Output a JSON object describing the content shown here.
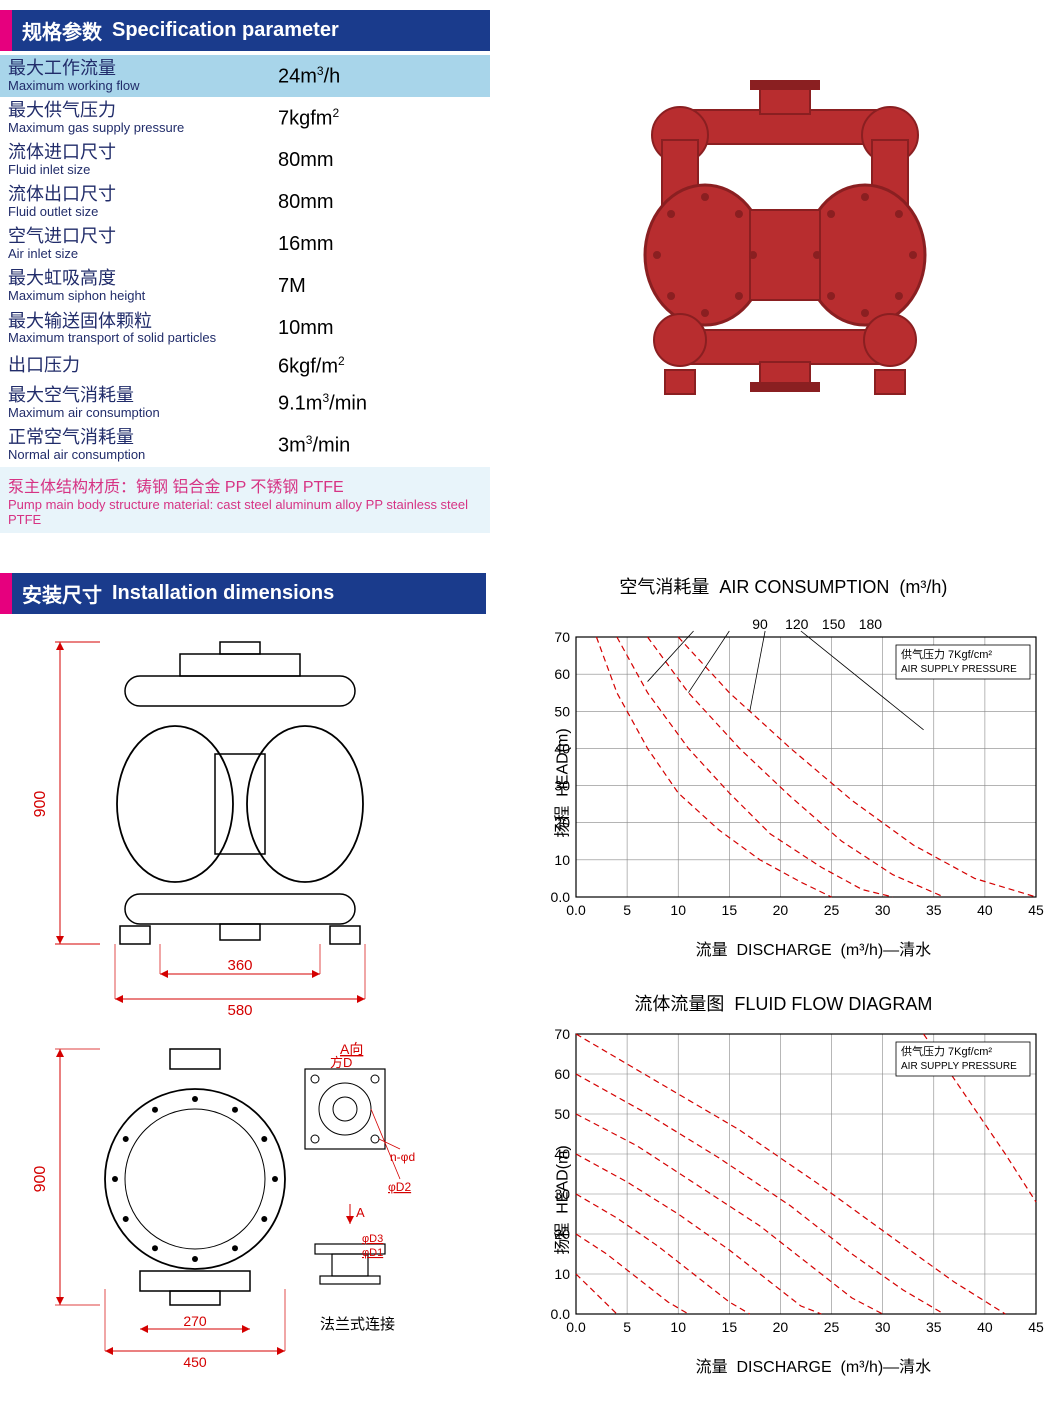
{
  "colors": {
    "accent_pink": "#e6007e",
    "header_blue": "#1a3b8c",
    "row_alt": "#a8d5ea",
    "label_navy": "#212c6a",
    "material_pink": "#d63384",
    "material_bg": "#e8f4fa",
    "dim_red": "#d40000",
    "curve_red": "#d40000",
    "grid_gray": "#888888",
    "pump_red": "#b82d2f",
    "pump_dark": "#8a1f21"
  },
  "section_spec": {
    "zh": "规格参数",
    "en": "Specification parameter"
  },
  "section_install": {
    "zh": "安装尺寸",
    "en": "Installation dimensions"
  },
  "spec_rows": [
    {
      "zh": "最大工作流量",
      "en": "Maximum working flow",
      "val": "24m³/h",
      "alt": true
    },
    {
      "zh": "最大供气压力",
      "en": "Maximum gas supply pressure",
      "val": "7kgfm²",
      "alt": false
    },
    {
      "zh": "流体进口尺寸",
      "en": "Fluid inlet size",
      "val": "80mm",
      "alt": false
    },
    {
      "zh": "流体出口尺寸",
      "en": "Fluid outlet size",
      "val": "80mm",
      "alt": false
    },
    {
      "zh": "空气进口尺寸",
      "en": "Air inlet size",
      "val": "16mm",
      "alt": false
    },
    {
      "zh": "最大虹吸高度",
      "en": "Maximum siphon height",
      "val": "7M",
      "alt": false
    },
    {
      "zh": "最大输送固体颗粒",
      "en": "Maximum transport of solid particles",
      "val": "10mm",
      "alt": false
    },
    {
      "zh": "出口压力",
      "en": "",
      "val": "6kgf/m²",
      "alt": false
    },
    {
      "zh": "最大空气消耗量",
      "en": "Maximum air consumption",
      "val": "9.1m³/min",
      "alt": false
    },
    {
      "zh": "正常空气消耗量",
      "en": "Normal air consumption",
      "val": "3m³/min",
      "alt": false
    }
  ],
  "material": {
    "zh": "泵主体结构材质：铸钢 铝合金 PP 不锈钢 PTFE",
    "en": "Pump main body structure material: cast steel aluminum alloy PP stainless steel PTFE"
  },
  "install_dims": {
    "front": {
      "height": "900",
      "inner_w": "360",
      "outer_w": "580"
    },
    "side": {
      "height": "900",
      "inner_w": "270",
      "outer_w": "450"
    },
    "flange_label": "法兰式连接",
    "flange_marks": {
      "a_dir": "A向",
      "sq_d": "方D",
      "n_phi_d": "n-φd",
      "phi_d2": "φD2",
      "phi_d3": "φD3",
      "phi_d1": "φD1",
      "arrow_a": "A"
    }
  },
  "chart1": {
    "title_zh": "空气消耗量",
    "title_en": "AIR CONSUMPTION",
    "title_unit": "(m³/h)",
    "y_label_zh": "扬程",
    "y_label_en": "HEAD(m)",
    "x_label_zh": "流量",
    "x_label_en": "DISCHARGE",
    "x_unit": "(m³/h)—清水",
    "y_min": 0,
    "y_max": 70,
    "y_step": 10,
    "x_min": 0,
    "x_max": 45,
    "x_step": 5,
    "top_labels": [
      90,
      120,
      150,
      180
    ],
    "legend": {
      "zh": "供气压力",
      "en": "AIR SUPPLY PRESSURE",
      "val": "7Kgf/cm²"
    },
    "curves": [
      [
        [
          2,
          70
        ],
        [
          4,
          55
        ],
        [
          7,
          40
        ],
        [
          10,
          28
        ],
        [
          14,
          18
        ],
        [
          18,
          10
        ],
        [
          22,
          4
        ],
        [
          25,
          0
        ]
      ],
      [
        [
          4,
          70
        ],
        [
          7,
          55
        ],
        [
          11,
          40
        ],
        [
          15,
          28
        ],
        [
          19,
          17
        ],
        [
          24,
          8
        ],
        [
          28,
          2
        ],
        [
          31,
          0
        ]
      ],
      [
        [
          7,
          70
        ],
        [
          11,
          55
        ],
        [
          16,
          40
        ],
        [
          21,
          27
        ],
        [
          26,
          15
        ],
        [
          31,
          6
        ],
        [
          36,
          0
        ]
      ],
      [
        [
          10,
          70
        ],
        [
          15,
          55
        ],
        [
          21,
          40
        ],
        [
          27,
          26
        ],
        [
          33,
          14
        ],
        [
          39,
          5
        ],
        [
          45,
          0
        ]
      ]
    ],
    "leader_lines": [
      {
        "from": [
          11.5,
          72
        ],
        "to": [
          7,
          58
        ]
      },
      {
        "from": [
          15,
          72
        ],
        "to": [
          11,
          55
        ]
      },
      {
        "from": [
          18.5,
          72
        ],
        "to": [
          17,
          50
        ]
      },
      {
        "from": [
          22,
          72
        ],
        "to": [
          34,
          45
        ]
      }
    ]
  },
  "chart2": {
    "title_zh": "流体流量图",
    "title_en": "FLUID FLOW DIAGRAM",
    "y_label_zh": "扬程",
    "y_label_en": "HEAD(m)",
    "x_label_zh": "流量",
    "x_label_en": "DISCHARGE",
    "x_unit": "(m³/h)—清水",
    "y_min": 0,
    "y_max": 70,
    "y_step": 10,
    "x_min": 0,
    "x_max": 45,
    "x_step": 5,
    "legend": {
      "zh": "供气压力",
      "en": "AIR SUPPLY PRESSURE",
      "val": "7Kgf/cm²"
    },
    "curves": [
      [
        [
          0,
          10
        ],
        [
          4,
          0
        ]
      ],
      [
        [
          0,
          20
        ],
        [
          3,
          15
        ],
        [
          6,
          9
        ],
        [
          9,
          3
        ],
        [
          11,
          0
        ]
      ],
      [
        [
          0,
          30
        ],
        [
          4,
          24
        ],
        [
          8,
          17
        ],
        [
          12,
          9
        ],
        [
          15,
          3
        ],
        [
          17,
          0
        ]
      ],
      [
        [
          0,
          40
        ],
        [
          5,
          33
        ],
        [
          10,
          25
        ],
        [
          15,
          16
        ],
        [
          19,
          8
        ],
        [
          22,
          2
        ],
        [
          24,
          0
        ]
      ],
      [
        [
          0,
          50
        ],
        [
          6,
          42
        ],
        [
          12,
          32
        ],
        [
          18,
          22
        ],
        [
          23,
          12
        ],
        [
          27,
          4
        ],
        [
          30,
          0
        ]
      ],
      [
        [
          0,
          60
        ],
        [
          7,
          50
        ],
        [
          14,
          39
        ],
        [
          21,
          27
        ],
        [
          27,
          15
        ],
        [
          32,
          6
        ],
        [
          36,
          0
        ]
      ],
      [
        [
          0,
          70
        ],
        [
          8,
          58
        ],
        [
          16,
          46
        ],
        [
          24,
          32
        ],
        [
          31,
          19
        ],
        [
          37,
          8
        ],
        [
          42,
          0
        ]
      ],
      [
        [
          34,
          70
        ],
        [
          38,
          55
        ],
        [
          42,
          40
        ],
        [
          45,
          28
        ]
      ]
    ]
  }
}
